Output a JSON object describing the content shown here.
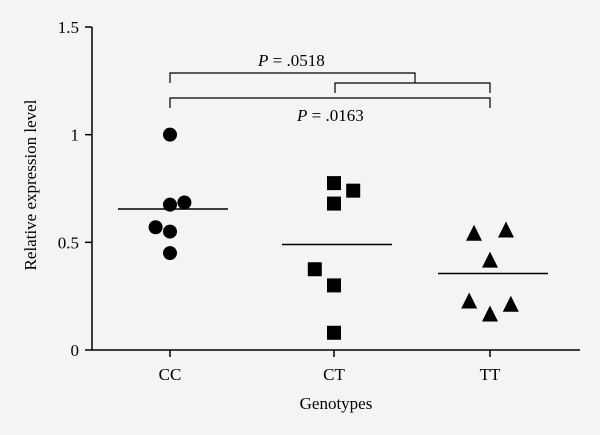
{
  "chart_data": {
    "type": "scatter",
    "xlabel": "Genotypes",
    "ylabel": "Relative expression level",
    "ylim": [
      0,
      1.5
    ],
    "yticks": [
      "0",
      "0.5",
      "1",
      "1.5"
    ],
    "categories": [
      "CC",
      "CT",
      "TT"
    ],
    "series": [
      {
        "category": "CC",
        "marker": "circle",
        "points": [
          {
            "x": 0.0,
            "y": 1.0
          },
          {
            "x": 0.09,
            "y": 0.685
          },
          {
            "x": 0.0,
            "y": 0.675
          },
          {
            "x": -0.09,
            "y": 0.57
          },
          {
            "x": 0.0,
            "y": 0.55
          },
          {
            "x": 0.0,
            "y": 0.45
          }
        ],
        "mean": 0.655
      },
      {
        "category": "CT",
        "marker": "square",
        "points": [
          {
            "x": 0.0,
            "y": 0.775
          },
          {
            "x": 0.12,
            "y": 0.74
          },
          {
            "x": 0.0,
            "y": 0.68
          },
          {
            "x": -0.12,
            "y": 0.375
          },
          {
            "x": 0.0,
            "y": 0.3
          },
          {
            "x": 0.0,
            "y": 0.08
          }
        ],
        "mean": 0.49
      },
      {
        "category": "TT",
        "marker": "triangle",
        "points": [
          {
            "x": -0.1,
            "y": 0.54
          },
          {
            "x": 0.1,
            "y": 0.555
          },
          {
            "x": 0.0,
            "y": 0.415
          },
          {
            "x": -0.13,
            "y": 0.225
          },
          {
            "x": 0.13,
            "y": 0.21
          },
          {
            "x": 0.0,
            "y": 0.165
          }
        ],
        "mean": 0.355
      }
    ],
    "annotations": [
      {
        "label_prefix": "P",
        "label_value": " = .0518"
      },
      {
        "label_prefix": "P",
        "label_value": " = .0163"
      }
    ]
  }
}
